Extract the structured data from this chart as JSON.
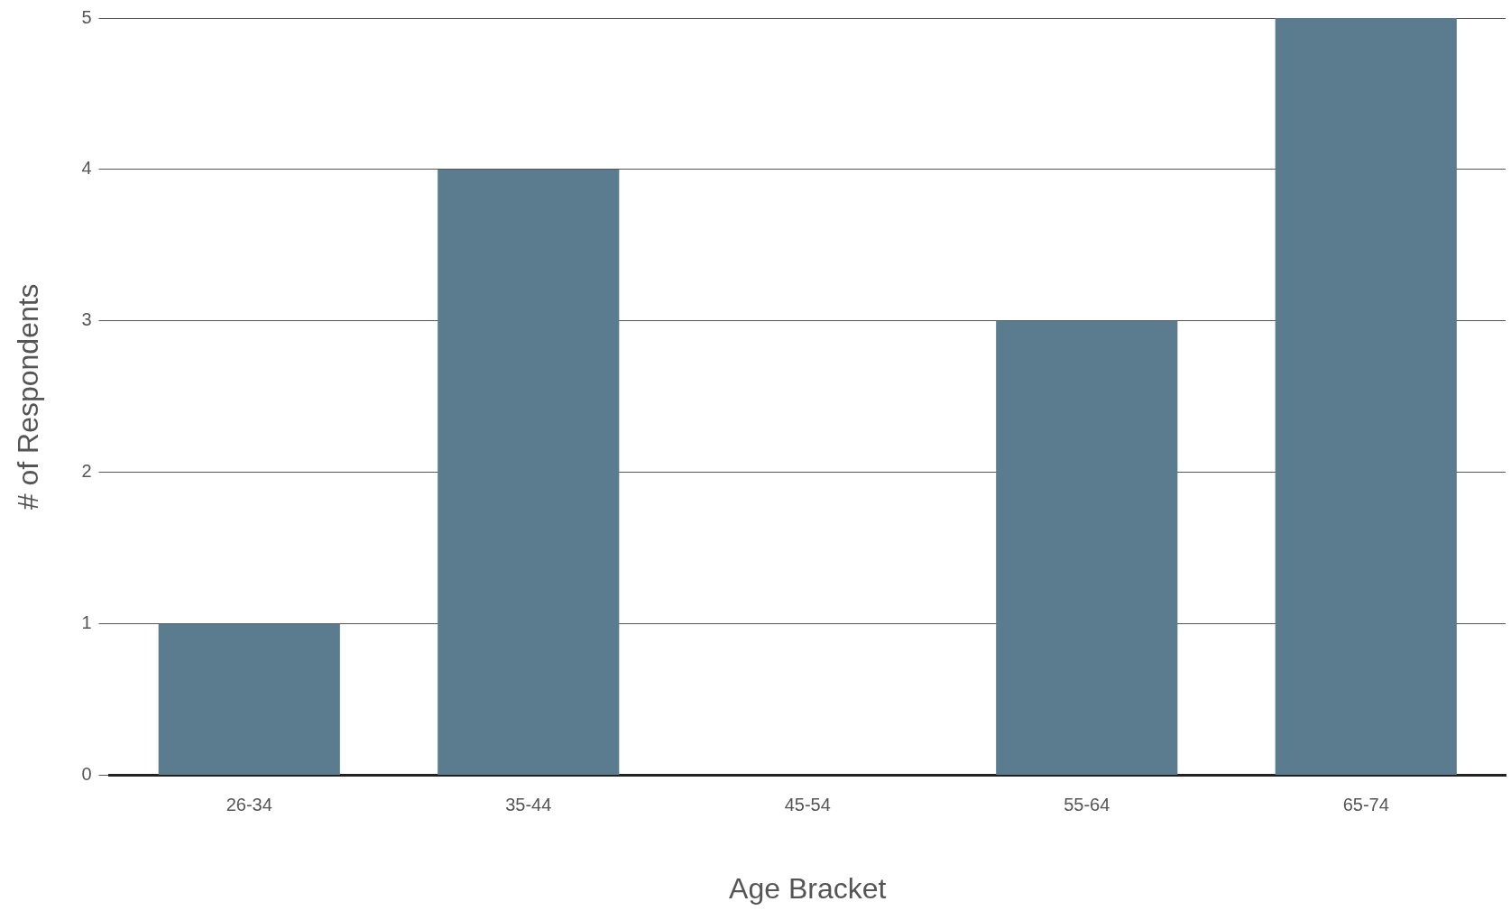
{
  "chart_data": {
    "type": "bar",
    "xlabel": "Age Bracket",
    "ylabel": "# of Respondents",
    "categories": [
      "26-34",
      "35-44",
      "45-54",
      "55-64",
      "65-74"
    ],
    "values": [
      1,
      4,
      0,
      3,
      5
    ],
    "color": "#5b7c8f",
    "ylim": [
      0,
      5
    ],
    "yticks": [
      0,
      1,
      2,
      3,
      4,
      5
    ],
    "grid": "y",
    "legend": false
  }
}
